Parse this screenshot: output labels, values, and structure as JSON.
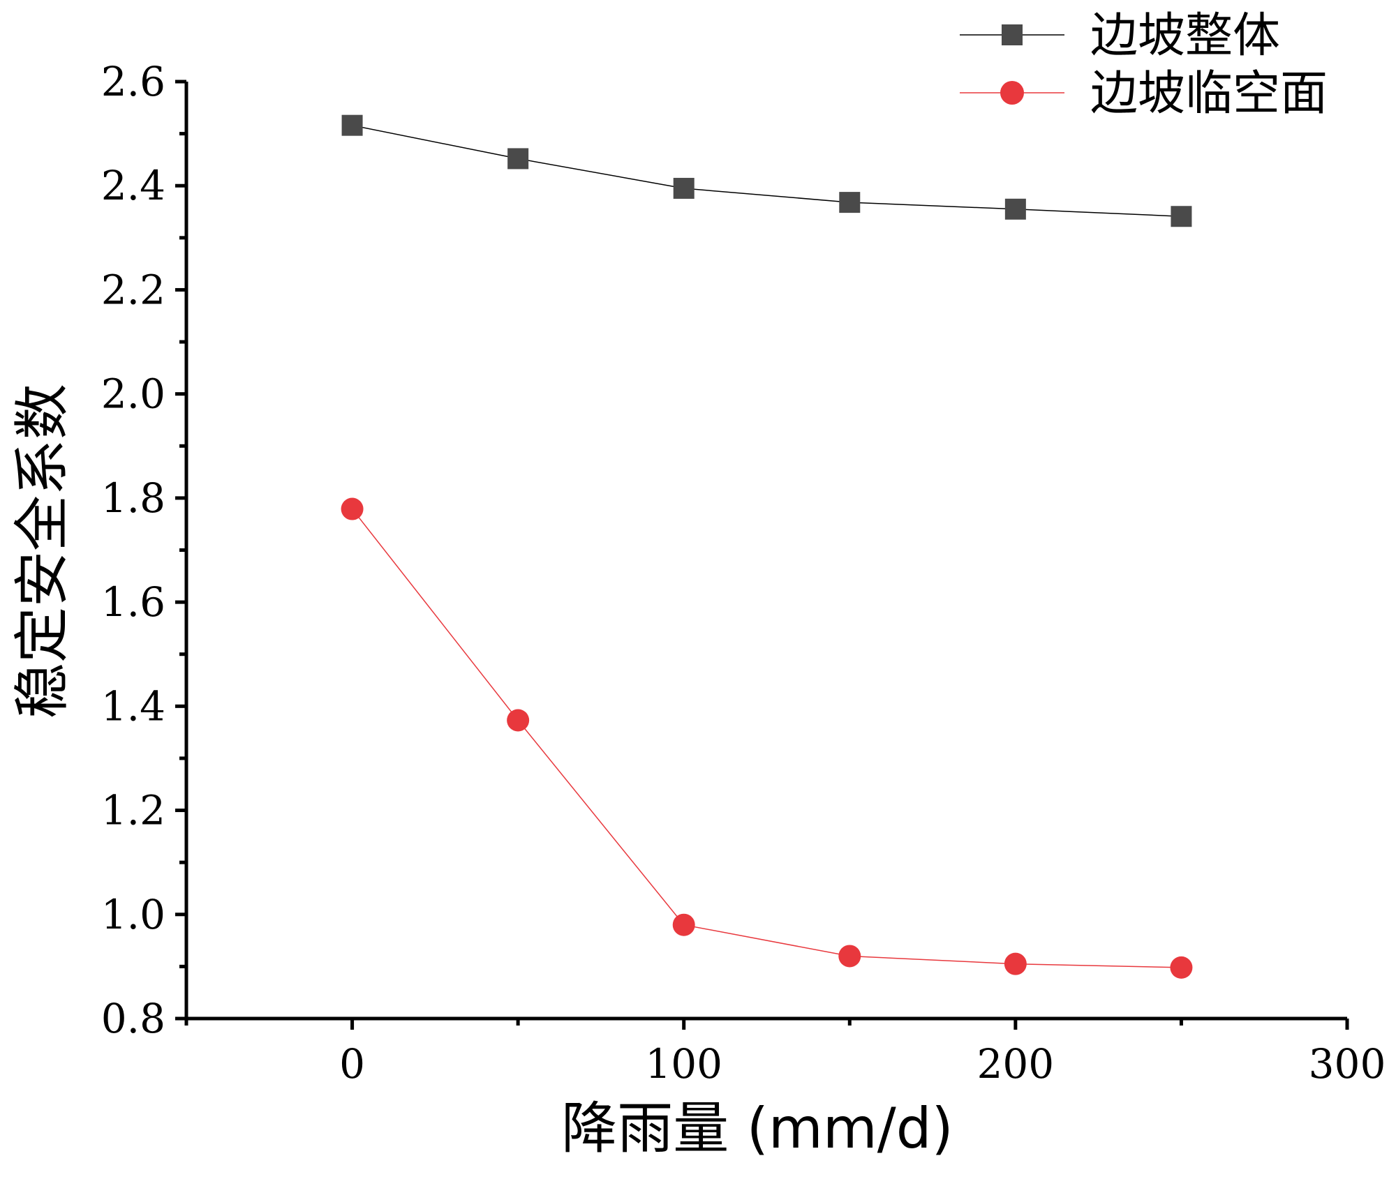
{
  "chart_data": {
    "type": "line",
    "xlabel": "降雨量 (mm/d)",
    "ylabel": "稳定安全系数",
    "xlim": [
      -50,
      300
    ],
    "ylim": [
      0.8,
      2.6
    ],
    "x_ticks": [
      "0",
      "100",
      "200",
      "300"
    ],
    "x_tick_values": [
      0,
      100,
      200,
      300
    ],
    "y_ticks": [
      "0.8",
      "1.0",
      "1.2",
      "1.4",
      "1.6",
      "1.8",
      "2.0",
      "2.2",
      "2.4",
      "2.6"
    ],
    "y_tick_values": [
      0.8,
      1.0,
      1.2,
      1.4,
      1.6,
      1.8,
      2.0,
      2.2,
      2.4,
      2.6
    ],
    "legend_position": "top-right",
    "series": [
      {
        "name": "边坡整体",
        "marker": "square",
        "color": "#4a4a4a",
        "x": [
          0,
          50,
          100,
          150,
          200,
          250
        ],
        "values": [
          2.516,
          2.452,
          2.395,
          2.368,
          2.355,
          2.341
        ]
      },
      {
        "name": "边坡临空面",
        "marker": "circle",
        "color": "#e8383d",
        "x": [
          0,
          50,
          100,
          150,
          200,
          250
        ],
        "values": [
          1.779,
          1.373,
          0.98,
          0.92,
          0.905,
          0.898
        ]
      }
    ]
  }
}
